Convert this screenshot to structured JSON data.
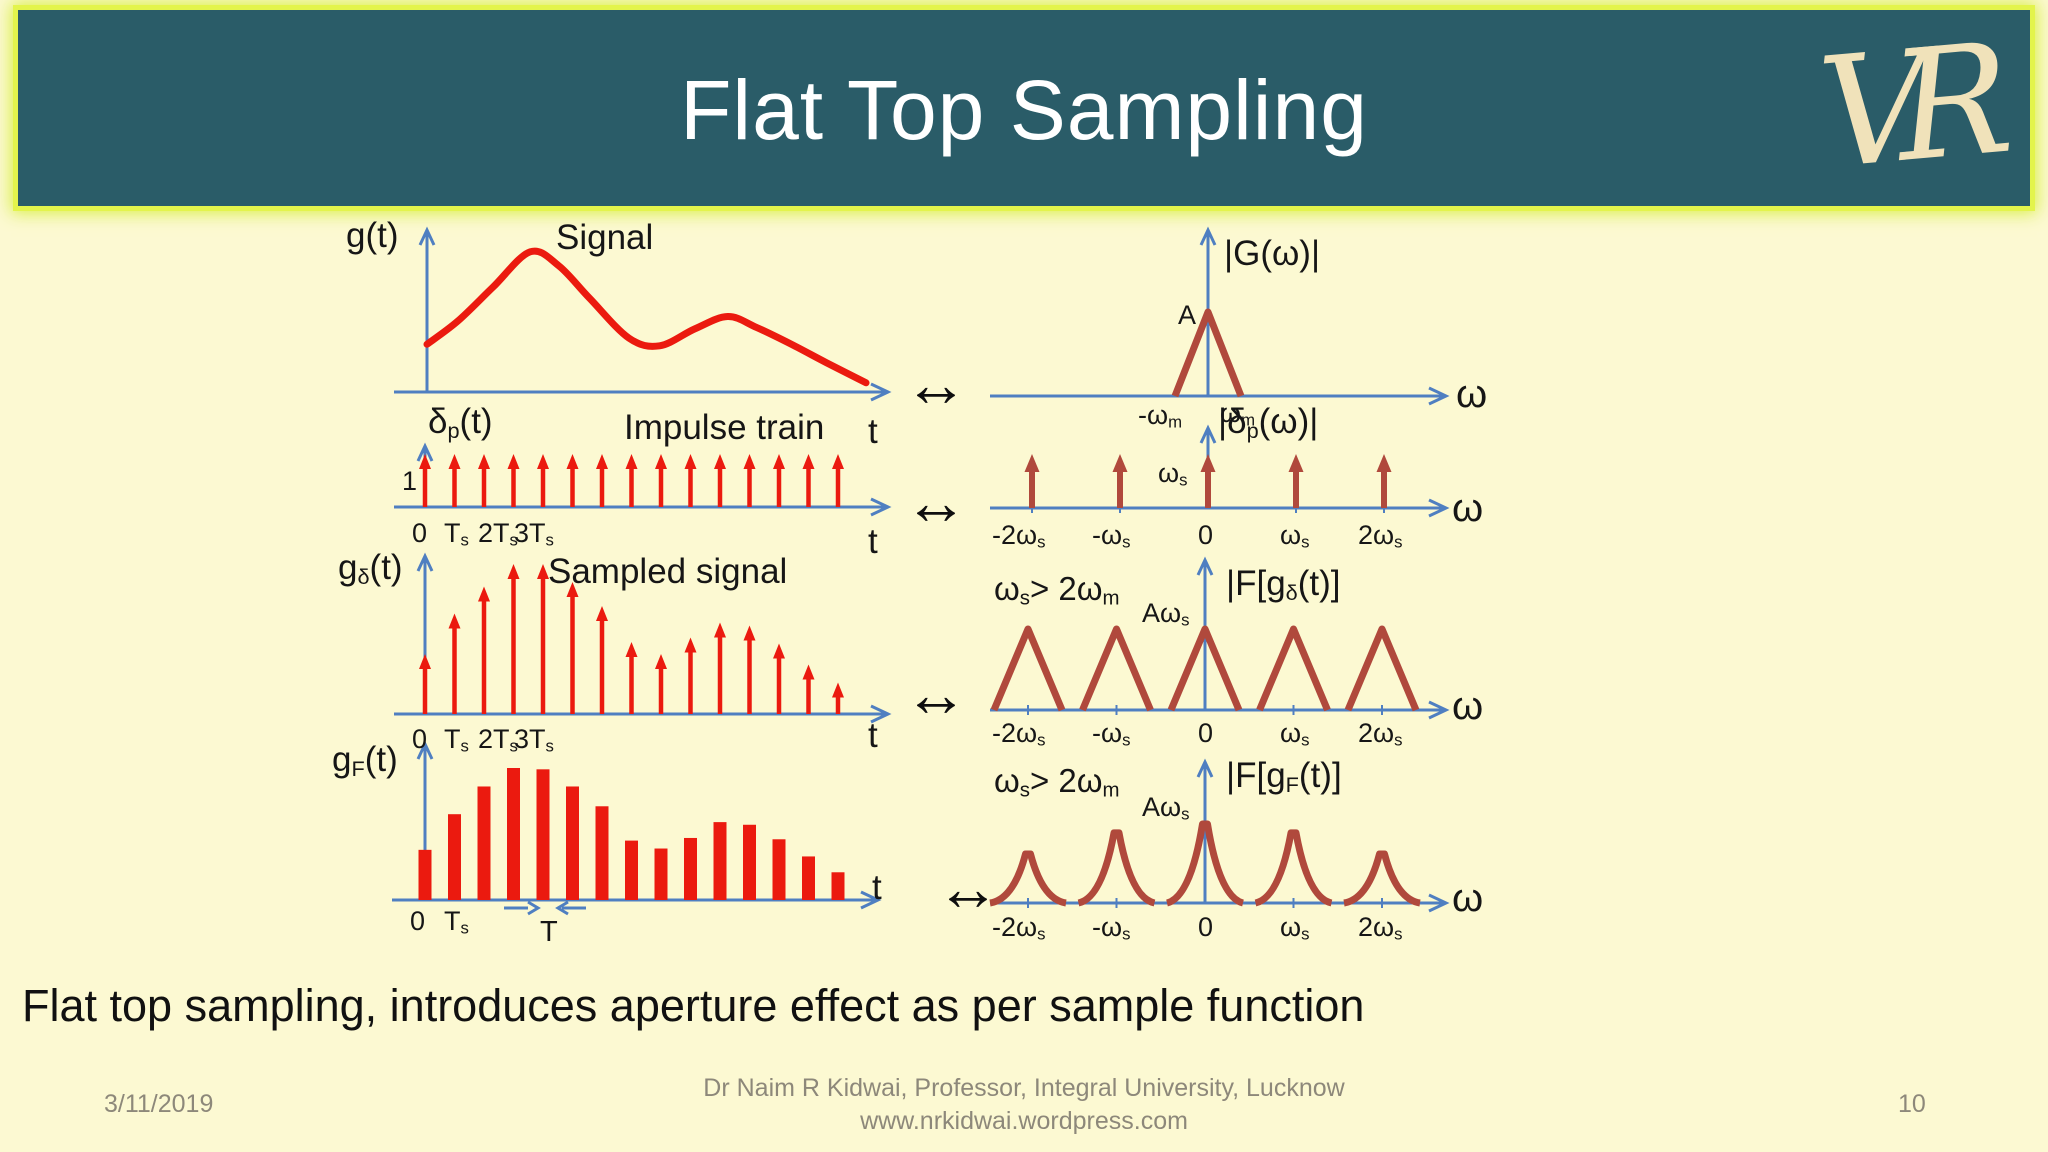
{
  "slide": {
    "title": "Flat Top Sampling",
    "logo_monogram": "VR",
    "caption": "Flat top sampling, introduces aperture effect as per sample function",
    "pair_symbol": "↔",
    "footer": {
      "date": "3/11/2019",
      "affiliation": "Dr Naim R Kidwai,  Professor, Integral University, Lucknow",
      "website": "www.nrkidwai.wordpress.com",
      "page_number": "10"
    }
  },
  "colors": {
    "header_teal": "#2a5c68",
    "border_chartreuse": "#e3f44c",
    "background": "#fcf9d2",
    "signal_red": "#eb1a0f",
    "spectrum_brick": "#b0493c",
    "axis_blue": "#4f7fc1",
    "text_black": "#161616",
    "footer_gray": "#8d887a",
    "title_white": "#ffffff",
    "logo_cream": "#f0e2ba"
  },
  "labels": {
    "r1_ylabel": "g(t)",
    "r1_title": "Signal",
    "r1_xlabel": "t",
    "r1R_ylabel": "|G(ω)|",
    "r1R_peak": "A",
    "r1R_ticks": [
      [
        [
          "-ω",
          0
        ],
        [
          "m",
          1
        ]
      ],
      [
        [
          "ω",
          0
        ],
        [
          "m",
          1
        ]
      ]
    ],
    "r1R_xlabel": "ω",
    "r2_ylabel": [
      [
        "δ",
        0
      ],
      [
        "p",
        1
      ],
      [
        "(t)",
        0
      ]
    ],
    "r2_title": "Impulse train",
    "r2_amp": "1",
    "r2_ticks": [
      "0",
      [
        [
          "T",
          0
        ],
        [
          "s",
          1
        ]
      ],
      [
        [
          "2T",
          0
        ],
        [
          "s",
          1
        ]
      ],
      [
        [
          "3T",
          0
        ],
        [
          "s",
          1
        ]
      ]
    ],
    "r2_xlabel": "t",
    "r2R_ylabel": [
      [
        "|δ",
        0
      ],
      [
        "p",
        1
      ],
      [
        "(ω)|",
        0
      ]
    ],
    "r2R_amp": [
      [
        "ω",
        0
      ],
      [
        "s",
        1
      ]
    ],
    "freq_ticks": [
      [
        [
          "-2ω",
          0
        ],
        [
          "s",
          1
        ]
      ],
      [
        [
          "-ω",
          0
        ],
        [
          "s",
          1
        ]
      ],
      "0",
      [
        [
          "ω",
          0
        ],
        [
          "s",
          1
        ]
      ],
      [
        [
          "2ω",
          0
        ],
        [
          "s",
          1
        ]
      ]
    ],
    "r2R_xlabel": "ω",
    "r3_ylabel": [
      [
        "g",
        0
      ],
      [
        "δ",
        1
      ],
      [
        "(t)",
        0
      ]
    ],
    "r3_title": "Sampled signal",
    "r3_xlabel": "t",
    "r3R_condition": [
      [
        "ω",
        0
      ],
      [
        "s",
        1
      ],
      [
        "> 2ω",
        0
      ],
      [
        "m",
        1
      ]
    ],
    "r3R_amp": [
      [
        "Aω",
        0
      ],
      [
        "s",
        1
      ]
    ],
    "r3R_ylabel": [
      [
        "|F[g",
        0
      ],
      [
        "δ",
        1
      ],
      [
        "(t)]",
        0
      ]
    ],
    "r3R_xlabel": "ω",
    "r4_ylabel": [
      [
        "g",
        0
      ],
      [
        "F",
        1
      ],
      [
        "(t)",
        0
      ]
    ],
    "r4_ticks": [
      "0",
      [
        [
          "T",
          0
        ],
        [
          "s",
          1
        ]
      ]
    ],
    "r4_width_label": "T",
    "r4_xlabel": "t",
    "r4R_ylabel": [
      [
        "|F[g",
        0
      ],
      [
        "F",
        1
      ],
      [
        "(t)]",
        0
      ]
    ],
    "r4R_xlabel": "ω"
  },
  "chart_data": [
    {
      "id": "signal_time",
      "type": "line",
      "title": "Signal",
      "ylabel": "g(t)",
      "xlabel": "t",
      "points": [
        [
          0.0,
          0.31
        ],
        [
          0.07,
          0.46
        ],
        [
          0.15,
          0.68
        ],
        [
          0.235,
          0.91
        ],
        [
          0.3,
          0.82
        ],
        [
          0.37,
          0.61
        ],
        [
          0.46,
          0.35
        ],
        [
          0.53,
          0.3
        ],
        [
          0.61,
          0.41
        ],
        [
          0.685,
          0.49
        ],
        [
          0.75,
          0.42
        ],
        [
          0.83,
          0.31
        ],
        [
          0.91,
          0.19
        ],
        [
          1.0,
          0.06
        ]
      ],
      "note": "band-limited analog signal, arbitrary amplitude units"
    },
    {
      "id": "signal_freq",
      "type": "triangle",
      "ylabel": "|G(ω)|",
      "xlabel": "ω",
      "peak_label": "A",
      "x_ticks": [
        "-ωm",
        "ωm"
      ],
      "peaks": [
        {
          "center": 0,
          "height": 1,
          "halfwidth": 1
        }
      ],
      "note": "triangular spectrum of height A occupying -ωm to ωm"
    },
    {
      "id": "impulse_time",
      "type": "impulse",
      "ylabel": "δp(t)",
      "title": "Impulse train",
      "xlabel": "t",
      "amplitude_label": "1",
      "x": [
        0,
        1,
        2,
        3,
        4,
        5,
        6,
        7,
        8,
        9,
        10,
        11,
        12,
        13,
        14
      ],
      "values": [
        1,
        1,
        1,
        1,
        1,
        1,
        1,
        1,
        1,
        1,
        1,
        1,
        1,
        1,
        1
      ],
      "x_ticks": [
        "0",
        "Ts",
        "2Ts",
        "3Ts"
      ],
      "note": "unit impulses every Ts"
    },
    {
      "id": "impulse_freq",
      "type": "impulse",
      "ylabel": "|δp(ω)|",
      "xlabel": "ω",
      "amplitude_label": "ωs",
      "x": [
        -2,
        -1,
        0,
        1,
        2
      ],
      "values": [
        1,
        1,
        1,
        1,
        1
      ],
      "x_ticks": [
        "-2ωs",
        "-ωs",
        "0",
        "ωs",
        "2ωs"
      ],
      "note": "impulses of height ωs every ωs"
    },
    {
      "id": "sampled_time",
      "type": "impulse",
      "ylabel": "gδ(t)",
      "title": "Sampled signal",
      "xlabel": "t",
      "x": [
        0,
        1,
        2,
        3,
        4,
        5,
        6,
        7,
        8,
        9,
        10,
        11,
        12,
        13,
        14
      ],
      "values": [
        0.4,
        0.67,
        0.85,
        1.0,
        1.0,
        0.88,
        0.72,
        0.48,
        0.4,
        0.51,
        0.61,
        0.59,
        0.47,
        0.33,
        0.21
      ],
      "x_ticks": [
        "0",
        "Ts",
        "2Ts",
        "3Ts"
      ],
      "note": "ideal samples of g(t) every Ts"
    },
    {
      "id": "sampled_freq",
      "type": "triangle",
      "ylabel": "|F[gδ(t)]",
      "xlabel": "ω",
      "condition": "ωs> 2ωm",
      "amplitude_label": "Aωs",
      "x_ticks": [
        "-2ωs",
        "-ωs",
        "0",
        "ωs",
        "2ωs"
      ],
      "peaks": [
        {
          "center": -2,
          "height": 1
        },
        {
          "center": -1,
          "height": 1
        },
        {
          "center": 0,
          "height": 1
        },
        {
          "center": 1,
          "height": 1
        },
        {
          "center": 2,
          "height": 1
        }
      ],
      "note": "replicated triangular spectra, equal height Aωs, centered at multiples of ωs"
    },
    {
      "id": "flattop_time",
      "type": "bar",
      "ylabel": "gF(t)",
      "xlabel": "t",
      "pulse_width_label": "T",
      "x": [
        0,
        1,
        2,
        3,
        4,
        5,
        6,
        7,
        8,
        9,
        10,
        11,
        12,
        13,
        14
      ],
      "values": [
        0.38,
        0.65,
        0.86,
        1.0,
        0.99,
        0.86,
        0.71,
        0.45,
        0.39,
        0.47,
        0.59,
        0.57,
        0.46,
        0.33,
        0.21
      ],
      "x_ticks": [
        "0",
        "Ts"
      ],
      "note": "flat-top pulses of width T every Ts"
    },
    {
      "id": "flattop_freq",
      "type": "cusp",
      "ylabel": "|F[gF(t)]",
      "xlabel": "ω",
      "condition": "ωs> 2ωm",
      "amplitude_label": "Aωs",
      "x_ticks": [
        "-2ωs",
        "-ωs",
        "0",
        "ωs",
        "2ωs"
      ],
      "peaks": [
        {
          "center": -2,
          "height": 0.63
        },
        {
          "center": -1,
          "height": 0.89
        },
        {
          "center": 0,
          "height": 1.0
        },
        {
          "center": 1,
          "height": 0.89
        },
        {
          "center": 2,
          "height": 0.63
        }
      ],
      "note": "replicated spectra attenuated by aperture effect away from origin"
    }
  ]
}
